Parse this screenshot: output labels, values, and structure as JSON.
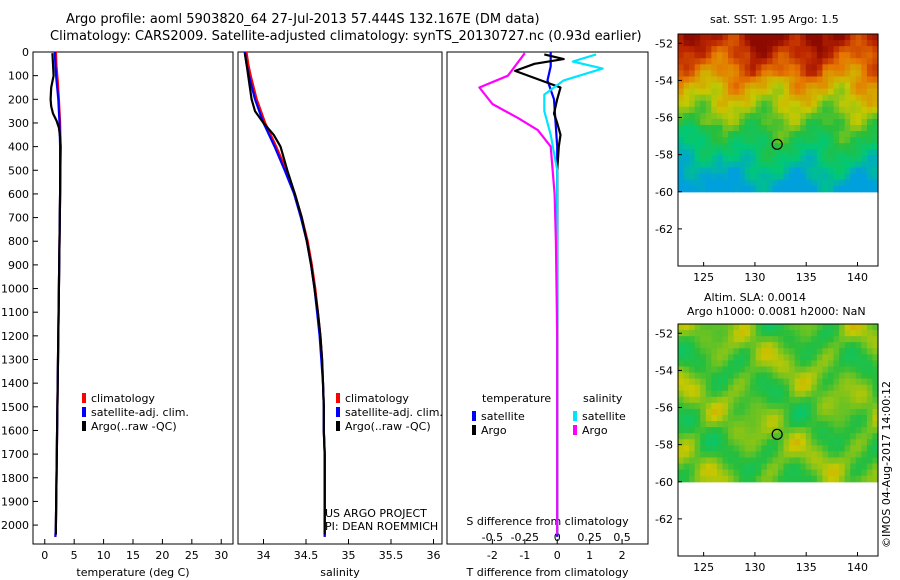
{
  "header": {
    "line1": "Argo profile: aoml 5903820_64 27-Jul-2013 57.444S 132.167E (DM data)",
    "line2": "Climatology: CARS2009. Satellite-adjusted climatology: synTS_20130727.nc (0.93d earlier)"
  },
  "map_titles": {
    "sst": "sat. SST: 1.95 Argo: 1.5",
    "sla1": "Altim. SLA: 0.0014",
    "sla2": "Argo h1000: 0.0081 h2000: NaN"
  },
  "footer": {
    "imos": "©IMOS 04-Aug-2017 14:00:12",
    "project1": "US ARGO PROJECT",
    "project2": "PI: DEAN ROEMMICH"
  },
  "colors": {
    "climatology": "#ff0000",
    "satellite": "#0000ff",
    "argo": "#000000",
    "argo_salinity_diff": "#ff00ff",
    "satellite_salinity_diff": "#00e5ff"
  },
  "chart_data": [
    {
      "type": "line",
      "title": "",
      "xlabel": "temperature (deg C)",
      "ylabel": "",
      "xlim": [
        -2,
        32
      ],
      "ylim": [
        2080,
        0
      ],
      "x_ticks": [
        0,
        5,
        10,
        15,
        20,
        25,
        30
      ],
      "x_tick_labels": [
        "0",
        "5",
        "10",
        "15",
        "20",
        "25",
        "30"
      ],
      "y_ticks": [
        0,
        100,
        200,
        300,
        400,
        500,
        600,
        700,
        800,
        900,
        1000,
        1100,
        1200,
        1300,
        1400,
        1500,
        1600,
        1700,
        1800,
        1900,
        2000
      ],
      "y_tick_labels": [
        "0",
        "100",
        "200",
        "300",
        "400",
        "500",
        "600",
        "700",
        "800",
        "900",
        "1000",
        "1100",
        "1200",
        "1300",
        "1400",
        "1500",
        "1600",
        "1700",
        "1800",
        "1900",
        "2000"
      ],
      "legend": [
        "climatology",
        "satellite-adj. clim.",
        "Argo(..raw -QC)"
      ],
      "legend_placement": "lower-right",
      "series": [
        {
          "name": "climatology",
          "points": [
            [
              1.9,
              0
            ],
            [
              2.0,
              60
            ],
            [
              2.2,
              120
            ],
            [
              2.4,
              200
            ],
            [
              2.6,
              300
            ],
            [
              2.7,
              400
            ],
            [
              2.6,
              600
            ],
            [
              2.5,
              800
            ],
            [
              2.4,
              1000
            ],
            [
              2.3,
              1200
            ],
            [
              2.2,
              1400
            ],
            [
              2.1,
              1600
            ],
            [
              2.0,
              1800
            ],
            [
              1.9,
              2000
            ],
            [
              1.8,
              2050
            ]
          ]
        },
        {
          "name": "satellite-adj. clim.",
          "points": [
            [
              1.7,
              0
            ],
            [
              1.8,
              60
            ],
            [
              2.0,
              120
            ],
            [
              2.3,
              200
            ],
            [
              2.5,
              300
            ],
            [
              2.6,
              400
            ],
            [
              2.6,
              600
            ],
            [
              2.5,
              800
            ],
            [
              2.4,
              1000
            ],
            [
              2.3,
              1200
            ],
            [
              2.2,
              1400
            ],
            [
              2.1,
              1600
            ],
            [
              2.0,
              1800
            ],
            [
              1.9,
              2000
            ],
            [
              1.8,
              2050
            ]
          ]
        },
        {
          "name": "Argo(..raw -QC)",
          "points": [
            [
              1.3,
              5
            ],
            [
              1.4,
              50
            ],
            [
              1.5,
              100
            ],
            [
              1.1,
              150
            ],
            [
              1.0,
              200
            ],
            [
              1.1,
              230
            ],
            [
              1.4,
              260
            ],
            [
              2.0,
              290
            ],
            [
              2.4,
              320
            ],
            [
              2.6,
              360
            ],
            [
              2.7,
              400
            ],
            [
              2.6,
              600
            ],
            [
              2.5,
              800
            ],
            [
              2.4,
              1000
            ],
            [
              2.3,
              1200
            ],
            [
              2.2,
              1400
            ],
            [
              2.1,
              1600
            ],
            [
              2.0,
              1800
            ],
            [
              1.9,
              2000
            ],
            [
              1.9,
              2040
            ]
          ]
        }
      ]
    },
    {
      "type": "line",
      "title": "",
      "xlabel": "salinity",
      "ylabel": "",
      "xlim": [
        33.7,
        36.1
      ],
      "ylim": [
        2080,
        0
      ],
      "x_ticks": [
        34,
        34.5,
        35,
        35.5,
        36
      ],
      "x_tick_labels": [
        "34",
        "34.5",
        "35",
        "35.5",
        "36"
      ],
      "y_ticks": [],
      "y_tick_labels": [],
      "legend": [
        "climatology",
        "satellite-adj. clim.",
        "Argo(..raw -QC)"
      ],
      "legend_placement": "lower-right",
      "series": [
        {
          "name": "climatology",
          "points": [
            [
              33.8,
              0
            ],
            [
              33.82,
              50
            ],
            [
              33.85,
              100
            ],
            [
              33.92,
              200
            ],
            [
              34.02,
              300
            ],
            [
              34.15,
              400
            ],
            [
              34.27,
              500
            ],
            [
              34.37,
              600
            ],
            [
              34.45,
              700
            ],
            [
              34.52,
              800
            ],
            [
              34.57,
              900
            ],
            [
              34.61,
              1000
            ],
            [
              34.64,
              1100
            ],
            [
              34.67,
              1200
            ],
            [
              34.69,
              1300
            ],
            [
              34.7,
              1400
            ],
            [
              34.71,
              1500
            ],
            [
              34.71,
              1600
            ],
            [
              34.72,
              1700
            ],
            [
              34.72,
              1800
            ],
            [
              34.72,
              1900
            ],
            [
              34.72,
              2050
            ]
          ]
        },
        {
          "name": "satellite-adj. clim.",
          "points": [
            [
              33.78,
              0
            ],
            [
              33.8,
              50
            ],
            [
              33.83,
              100
            ],
            [
              33.9,
              200
            ],
            [
              34.0,
              300
            ],
            [
              34.13,
              400
            ],
            [
              34.25,
              500
            ],
            [
              34.36,
              600
            ],
            [
              34.44,
              700
            ],
            [
              34.51,
              800
            ],
            [
              34.56,
              900
            ],
            [
              34.6,
              1000
            ],
            [
              34.63,
              1100
            ],
            [
              34.66,
              1200
            ],
            [
              34.68,
              1300
            ],
            [
              34.7,
              1400
            ],
            [
              34.71,
              1500
            ],
            [
              34.71,
              1600
            ],
            [
              34.72,
              1700
            ],
            [
              34.72,
              1800
            ],
            [
              34.72,
              1900
            ],
            [
              34.72,
              2050
            ]
          ]
        },
        {
          "name": "Argo(..raw -QC)",
          "points": [
            [
              33.78,
              5
            ],
            [
              33.8,
              50
            ],
            [
              33.82,
              100
            ],
            [
              33.84,
              150
            ],
            [
              33.86,
              200
            ],
            [
              33.9,
              250
            ],
            [
              34.0,
              300
            ],
            [
              34.12,
              350
            ],
            [
              34.2,
              400
            ],
            [
              34.28,
              500
            ],
            [
              34.37,
              600
            ],
            [
              34.45,
              700
            ],
            [
              34.51,
              800
            ],
            [
              34.56,
              900
            ],
            [
              34.6,
              1000
            ],
            [
              34.64,
              1100
            ],
            [
              34.67,
              1200
            ],
            [
              34.69,
              1300
            ],
            [
              34.7,
              1400
            ],
            [
              34.71,
              1500
            ],
            [
              34.71,
              1600
            ],
            [
              34.72,
              1700
            ],
            [
              34.72,
              1800
            ],
            [
              34.72,
              1900
            ],
            [
              34.72,
              2040
            ]
          ]
        }
      ]
    },
    {
      "type": "line",
      "title": "",
      "xlabel": "T difference from climatology",
      "top_xlabel": "S difference from climatology",
      "ylabel": "",
      "xlim": [
        -3.4,
        2.8
      ],
      "ylim": [
        2080,
        0
      ],
      "x_ticks": [
        -2,
        -1,
        0,
        1,
        2
      ],
      "x_tick_labels": [
        "-2",
        "-1",
        "0",
        "1",
        "2"
      ],
      "s_ticks": [
        -0.5,
        -0.25,
        0,
        0.25,
        0.5
      ],
      "s_tick_labels": [
        "-0.5",
        "-0.25",
        "0",
        "0.25",
        "0.5"
      ],
      "s_scale": 4,
      "y_ticks": [],
      "y_tick_labels": [],
      "legend_headers": [
        "temperature",
        "salinity"
      ],
      "legend": [
        "satellite",
        "Argo",
        "satellite",
        "Argo"
      ],
      "legend_placement": "lower-center",
      "series": [
        {
          "name": "temperature satellite",
          "points": [
            [
              -0.2,
              0
            ],
            [
              -0.2,
              60
            ],
            [
              -0.3,
              120
            ],
            [
              -0.1,
              200
            ],
            [
              -0.05,
              300
            ],
            [
              0,
              400
            ],
            [
              0,
              800
            ],
            [
              0,
              1200
            ],
            [
              0,
              1600
            ],
            [
              0,
              2050
            ]
          ]
        },
        {
          "name": "temperature Argo",
          "points": [
            [
              -0.4,
              10
            ],
            [
              0.2,
              30
            ],
            [
              -0.7,
              50
            ],
            [
              -1.3,
              80
            ],
            [
              -0.5,
              120
            ],
            [
              0.1,
              150
            ],
            [
              0,
              200
            ],
            [
              -0.1,
              260
            ],
            [
              0,
              300
            ],
            [
              0.1,
              350
            ],
            [
              0.05,
              400
            ],
            [
              0,
              500
            ],
            [
              0,
              600
            ],
            [
              0,
              800
            ],
            [
              0,
              1200
            ],
            [
              0,
              1600
            ],
            [
              0,
              2040
            ]
          ]
        },
        {
          "name": "salinity satellite",
          "points": [
            [
              0.3,
              10
            ],
            [
              0.12,
              40
            ],
            [
              0.35,
              70
            ],
            [
              0.05,
              120
            ],
            [
              -0.1,
              180
            ],
            [
              -0.1,
              250
            ],
            [
              -0.05,
              350
            ],
            [
              0,
              500
            ],
            [
              0,
              800
            ],
            [
              0,
              1200
            ],
            [
              0,
              1600
            ],
            [
              0,
              2000
            ],
            [
              0,
              2040
            ]
          ]
        },
        {
          "name": "salinity Argo",
          "points": [
            [
              -0.25,
              5
            ],
            [
              -0.38,
              100
            ],
            [
              -0.6,
              150
            ],
            [
              -0.5,
              220
            ],
            [
              -0.3,
              280
            ],
            [
              -0.15,
              330
            ],
            [
              -0.05,
              400
            ],
            [
              -0.02,
              600
            ],
            [
              -0.01,
              800
            ],
            [
              0,
              1200
            ],
            [
              0,
              1600
            ],
            [
              0,
              2040
            ]
          ]
        }
      ]
    },
    {
      "type": "heatmap",
      "title": "sat. SST: 1.95 Argo: 1.5",
      "xlim": [
        122.5,
        142
      ],
      "ylim": [
        -64,
        -51.5
      ],
      "x_ticks": [
        125,
        130,
        135,
        140
      ],
      "x_tick_labels": [
        "125",
        "130",
        "135",
        "140"
      ],
      "y_ticks": [
        -52,
        -54,
        -56,
        -58,
        -60,
        -62
      ],
      "y_tick_labels": [
        "-52",
        "-54",
        "-56",
        "-58",
        "-60",
        "-62"
      ],
      "data_extent": {
        "lon": [
          122.5,
          142
        ],
        "lat": [
          -60,
          -51.5
        ]
      },
      "marker": {
        "lon": 132.167,
        "lat": -57.444
      },
      "field": "SST"
    },
    {
      "type": "heatmap",
      "title": "Argo h1000: 0.0081 h2000: NaN",
      "xlim": [
        122.5,
        142
      ],
      "ylim": [
        -64,
        -51.5
      ],
      "x_ticks": [
        125,
        130,
        135,
        140
      ],
      "x_tick_labels": [
        "125",
        "130",
        "135",
        "140"
      ],
      "y_ticks": [
        -52,
        -54,
        -56,
        -58,
        -60,
        -62
      ],
      "y_tick_labels": [
        "-52",
        "-54",
        "-56",
        "-58",
        "-60",
        "-62"
      ],
      "data_extent": {
        "lon": [
          122.5,
          142
        ],
        "lat": [
          -60,
          -51.5
        ]
      },
      "marker": {
        "lon": 132.167,
        "lat": -57.444
      },
      "field": "SLA"
    }
  ]
}
